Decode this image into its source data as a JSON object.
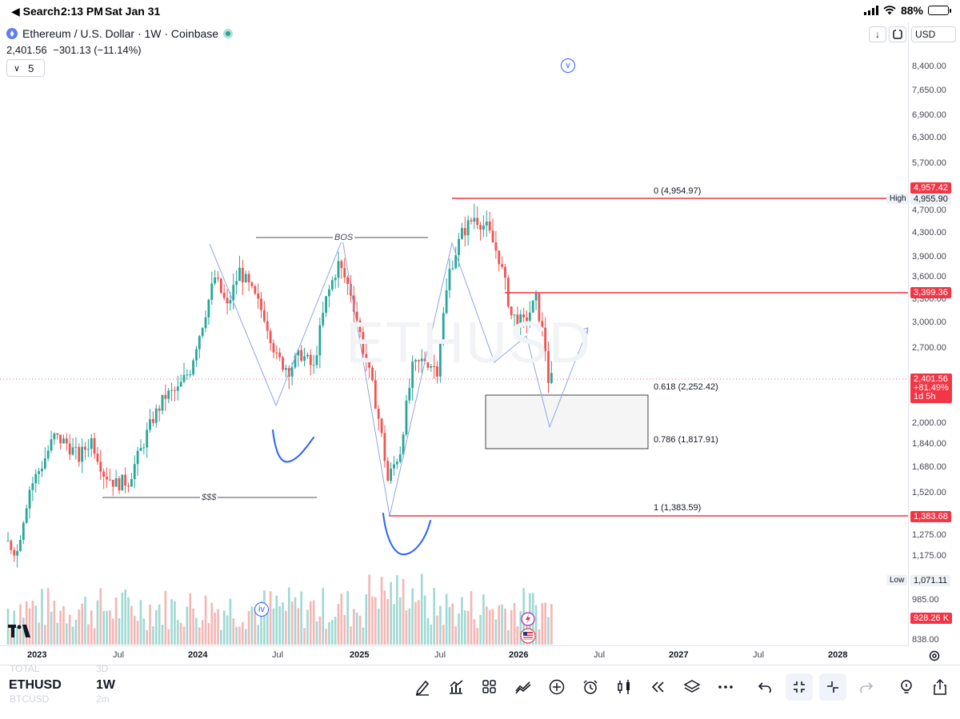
{
  "status_bar": {
    "back_label": "◀ Search",
    "time": "2:13 PM",
    "date": "Sat Jan 31",
    "battery": "88%",
    "battery_level": 0.88
  },
  "legend": {
    "title": "Ethereum / U.S. Dollar · 1W · Coinbase",
    "last": "2,401.56",
    "change": "−301.13 (−11.14%)",
    "indicator_count": "5",
    "chevron": "∨"
  },
  "header": {
    "currency": "USD",
    "download_icon": "↓",
    "fullscreen_icon": "fullscreen-icon"
  },
  "price_axis": {
    "labels": [
      "8,400.00",
      "7,650.00",
      "6,900.00",
      "6,300.00",
      "5,700.00",
      "4,700.00",
      "4,300.00",
      "3,900.00",
      "3,600.00",
      "3,300.00",
      "3,000.00",
      "2,700.00",
      "2,000.00",
      "1,840.00",
      "1,680.00",
      "1,520.00",
      "1,275.00",
      "1,175.00",
      "985.00",
      "838.00"
    ],
    "tags": {
      "fib0": "4,957.42",
      "high": "4,955.90",
      "high_chip": "High",
      "resistance": "3,399.36",
      "current": "2,401.56",
      "current_pct": "+81.49%",
      "countdown": "1d 5h",
      "fib1": "1,383.68",
      "low": "1,071.11",
      "low_chip": "Low",
      "volume": "928.26 K"
    }
  },
  "time_axis": [
    "2023",
    "Jul",
    "2024",
    "Jul",
    "2025",
    "Jul",
    "2026",
    "Jul",
    "2027",
    "Jul",
    "2028"
  ],
  "annotations": {
    "fib0": "0 (4,954.97)",
    "fib618": "0.618 (2,252.42)",
    "fib786": "0.786 (1,817.91)",
    "fib1": "1 (1,383.59)",
    "bos": "BOS",
    "liquidity": "$$$",
    "badge_v": "v",
    "badge_iv": "iv"
  },
  "watermark": "ETHUSD",
  "bottom": {
    "symbol": "ETHUSD",
    "interval": "1W",
    "ghost_top": "TOTAL",
    "ghost_top_interval": "3D",
    "ghost_bottom": "BTCUSD",
    "ghost_bottom_interval": "2m"
  },
  "colors": {
    "up": "#26a69a",
    "down": "#ef5350",
    "line_red": "#f23645",
    "drawing_blue": "#2962ff",
    "path_blue": "#90a4e8"
  }
}
